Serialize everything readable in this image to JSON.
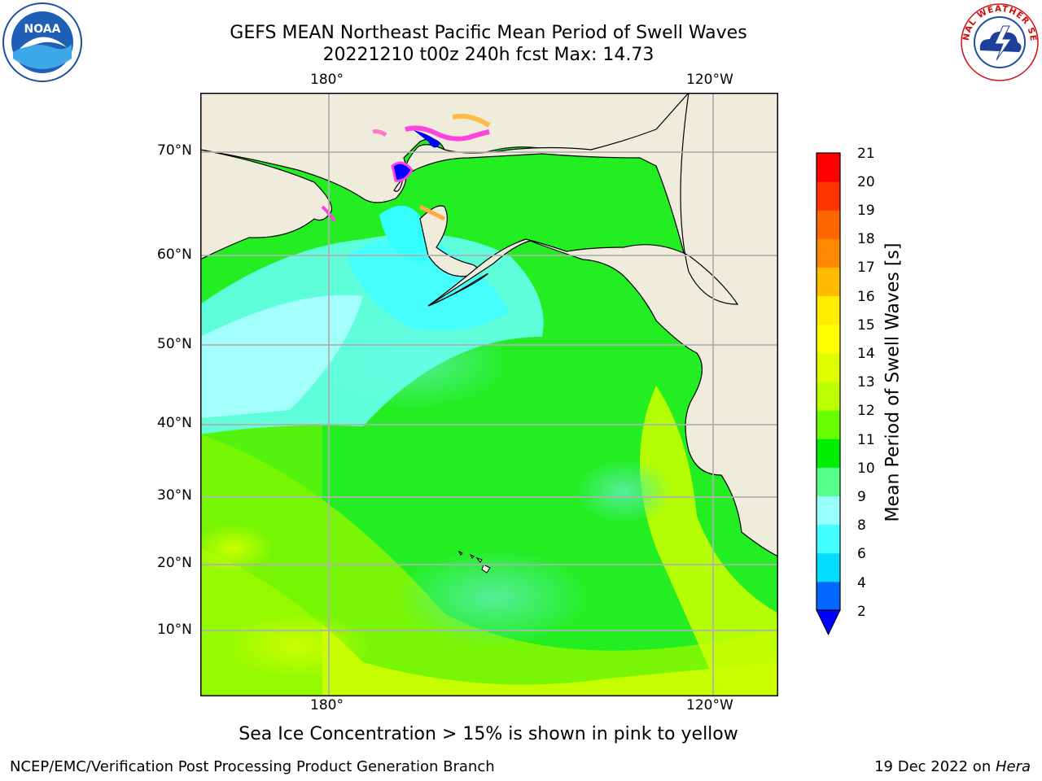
{
  "header": {
    "title_line1": "GEFS MEAN Northeast Pacific Mean Period of Swell Waves",
    "title_line2": "20221210 t00z 240h fcst   Max: 14.73"
  },
  "logos": {
    "left": "NOAA",
    "right": "NATIONAL WEATHER SERVICE"
  },
  "chart_data": {
    "type": "heatmap",
    "title": "GEFS MEAN Northeast Pacific Mean Period of Swell Waves",
    "subtitle": "20221210 t00z 240h fcst   Max: 14.73",
    "xlabel": "",
    "ylabel": "",
    "max_value": 14.73,
    "x_ticks": [
      "180°",
      "120°W"
    ],
    "y_ticks": [
      "70°N",
      "60°N",
      "50°N",
      "40°N",
      "30°N",
      "20°N",
      "10°N"
    ],
    "grid": true,
    "colorbar": {
      "label": "Mean Period of Swell Waves [s]",
      "ticks": [
        "21",
        "20",
        "19",
        "18",
        "17",
        "16",
        "15",
        "14",
        "13",
        "12",
        "11",
        "10",
        "9",
        "8",
        "6",
        "4",
        "2"
      ],
      "levels": [
        2,
        4,
        6,
        8,
        9,
        10,
        11,
        12,
        13,
        14,
        15,
        16,
        17,
        18,
        19,
        20,
        21
      ],
      "colors": [
        "#0066ff",
        "#00ddff",
        "#44ffff",
        "#99ffff",
        "#55ff88",
        "#00ee00",
        "#66ff00",
        "#bbff00",
        "#ddff00",
        "#ffff00",
        "#ffee00",
        "#ffbb00",
        "#ff8800",
        "#ff6600",
        "#ff3300",
        "#ff0000"
      ],
      "extend_color": "#0000ff",
      "placement": "right"
    },
    "land_color": "#efecdc",
    "note": "Sea Ice Concentration > 15% is shown in pink to yellow"
  },
  "footer": {
    "left": "NCEP/EMC/Verification Post Processing Product Generation Branch",
    "right_date": "19 Dec 2022 on ",
    "right_host": "Hera"
  }
}
